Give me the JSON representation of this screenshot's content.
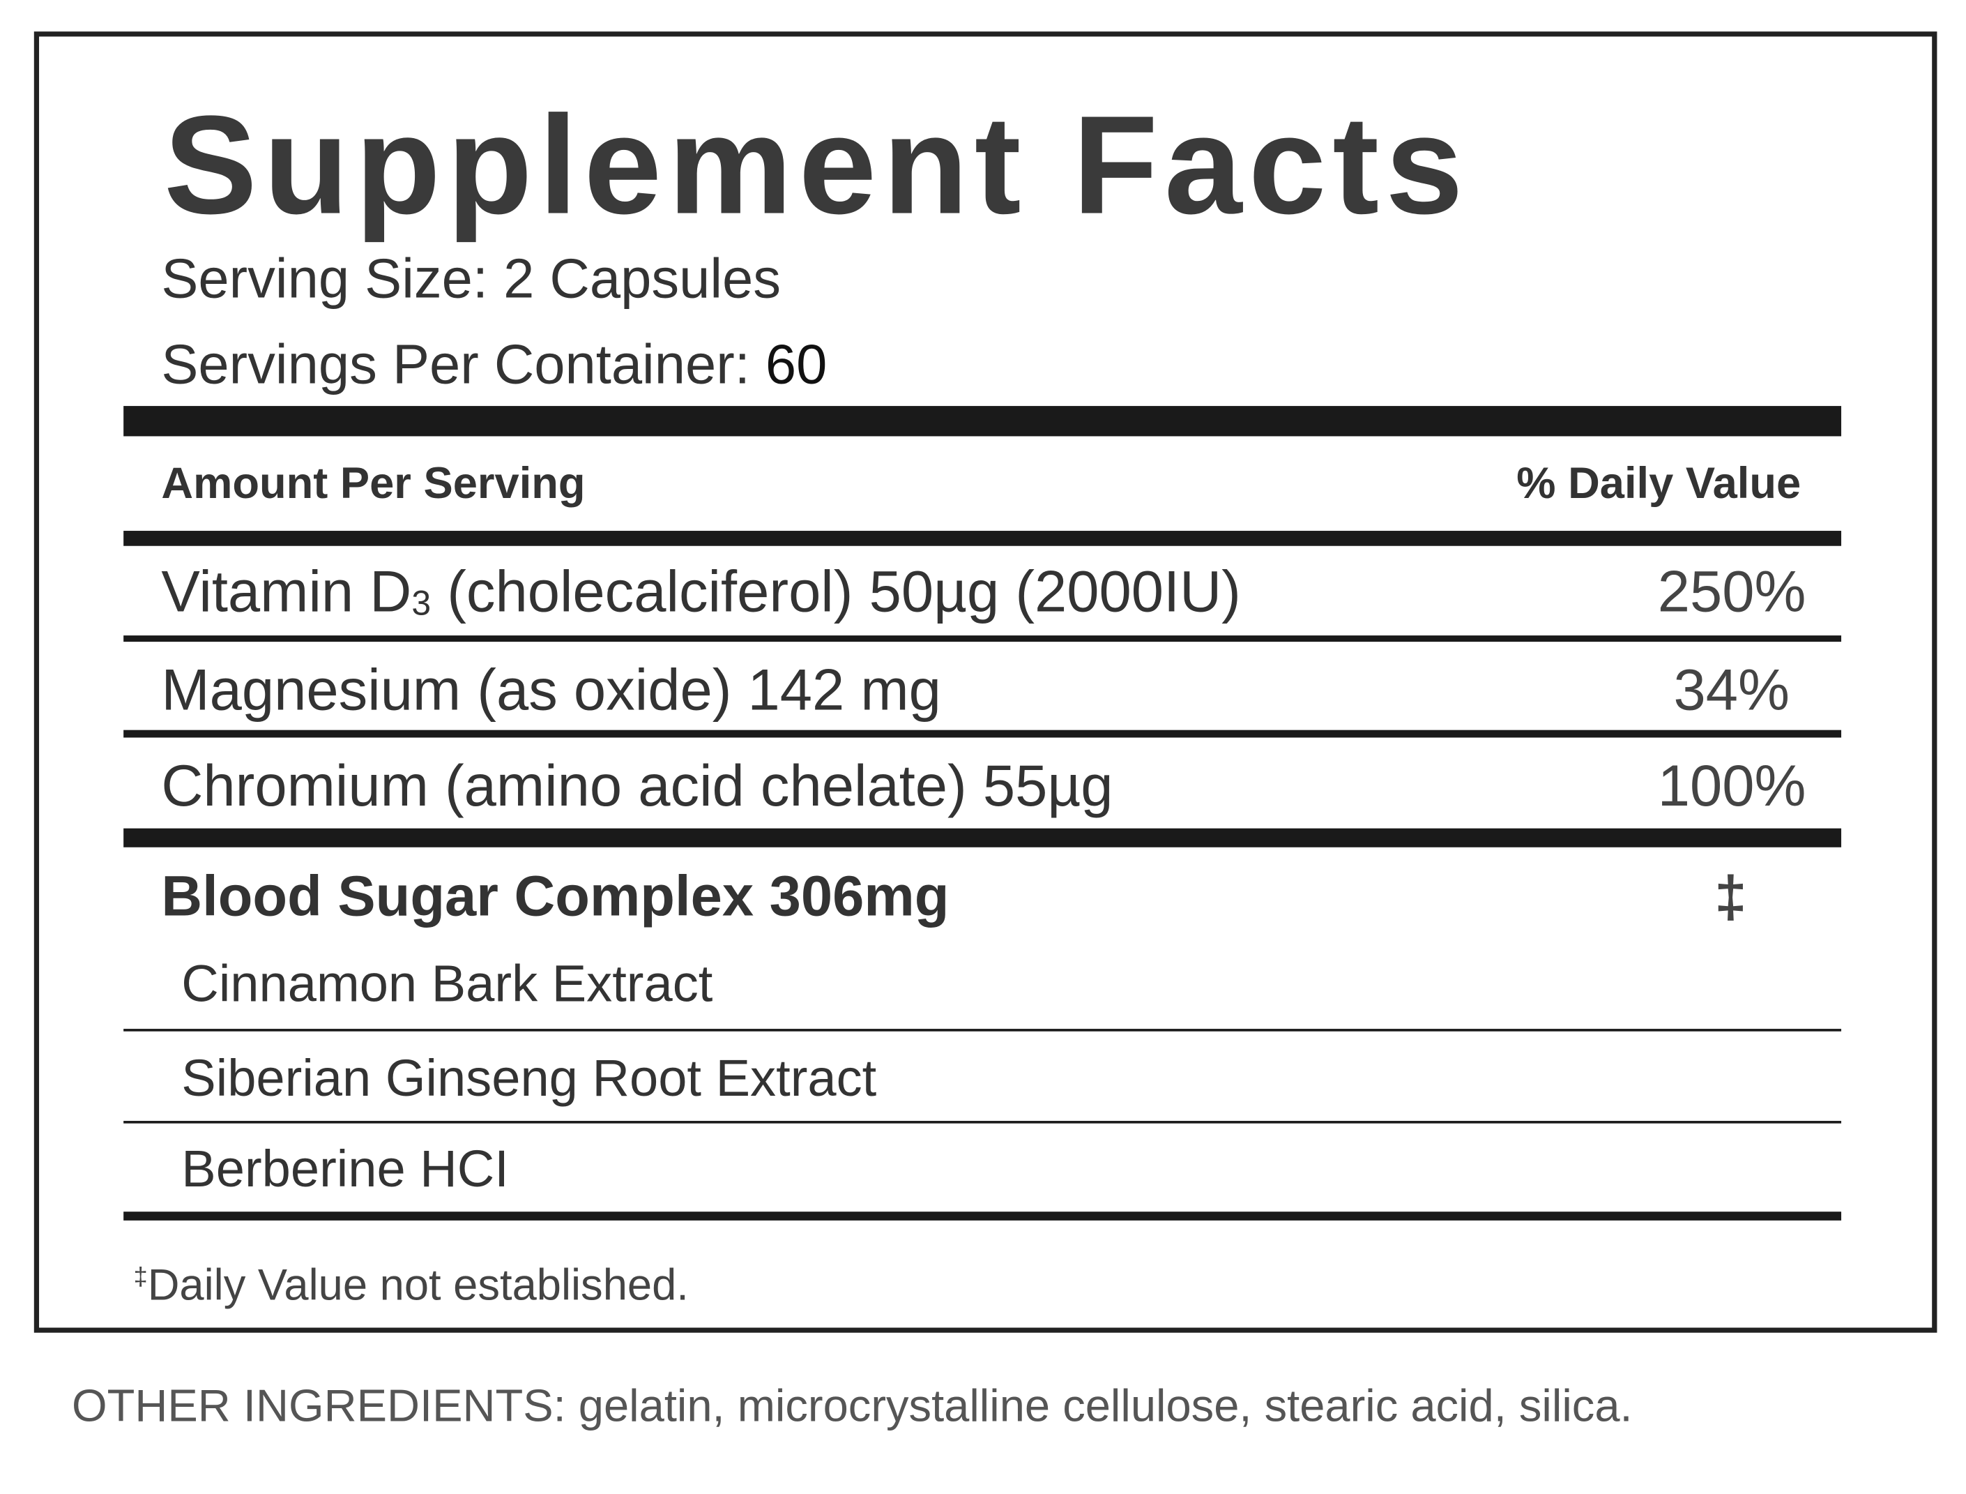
{
  "label": {
    "title": "Supplement Facts",
    "serving_size": "Serving Size: 2 Capsules",
    "servings_per_container_label": "Servings Per Container: ",
    "servings_per_container_value": "60",
    "header_amount": "Amount Per Serving",
    "header_dv": "% Daily Value",
    "nutrients": [
      {
        "name_pre": "Vitamin D",
        "name_sub": "3",
        "name_post": " (cholecalciferol) 50µg (2000IU)",
        "dv": "250%"
      },
      {
        "name_pre": "Magnesium (as oxide) 142 mg",
        "dv": "34%"
      },
      {
        "name_pre": "Chromium (amino acid chelate) 55µg",
        "dv": "100%"
      }
    ],
    "blend": {
      "name": "Blood Sugar Complex 306mg",
      "dv": "‡",
      "ingredients": [
        "Cinnamon Bark Extract",
        "Siberian Ginseng Root Extract",
        "Berberine HCI"
      ]
    },
    "footnote_mark": "‡",
    "footnote": "Daily Value not established."
  },
  "other_ingredients": "OTHER INGREDIENTS: gelatin, microcrystalline cellulose, stearic acid, silica."
}
